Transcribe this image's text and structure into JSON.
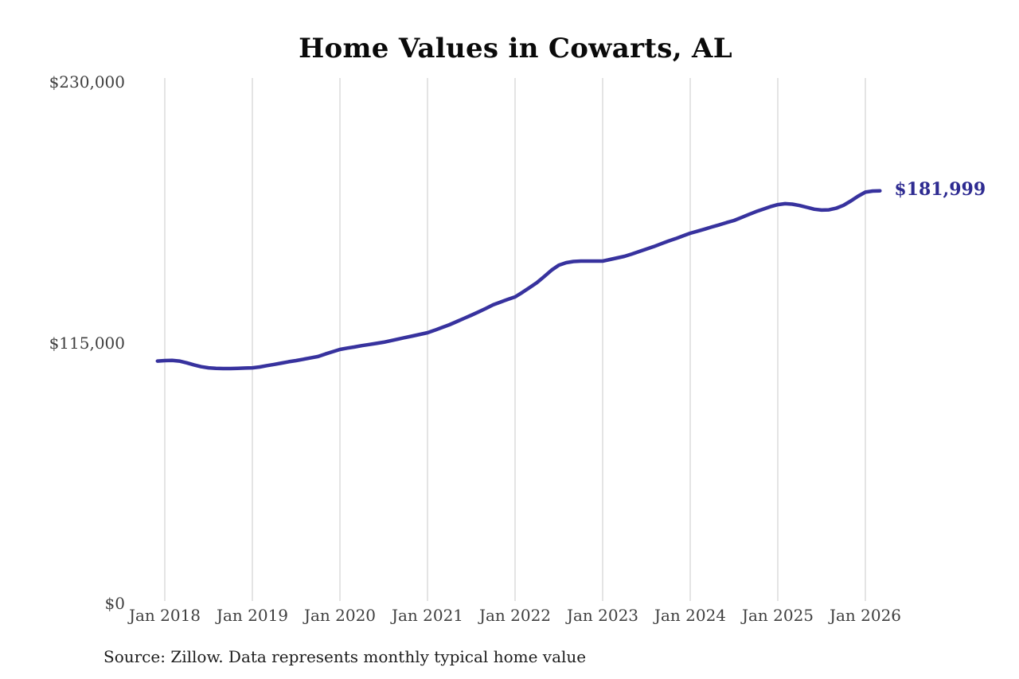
{
  "title": "Home Values in Cowarts, AL",
  "source_note": "Source: Zillow. Data represents monthly typical home value",
  "colors": {
    "background": "#ffffff",
    "line": "#37329e",
    "end_label": "#2e2b91",
    "axis_text": "#3f3f3f",
    "gridline": "#c8c8c8",
    "title": "#0a0a0a",
    "source_text": "#1d1d1d"
  },
  "chart_data": {
    "type": "line",
    "title": "Home Values in Cowarts, AL",
    "xlabel": "",
    "ylabel": "",
    "ylim": [
      0,
      230000
    ],
    "grid": "vertical-ticks-only",
    "legend_position": "none",
    "series_name": "Monthly typical home value",
    "end_annotation": "$181,999",
    "y_ticks": [
      {
        "value": 230000,
        "label": "$230,000"
      },
      {
        "value": 115000,
        "label": "$115,000"
      },
      {
        "value": 0,
        "label": "$0"
      }
    ],
    "x_tick_labels": [
      "Jan 2018",
      "Jan 2019",
      "Jan 2020",
      "Jan 2021",
      "Jan 2022",
      "Jan 2023",
      "Jan 2024",
      "Jan 2025",
      "Jan 2026"
    ],
    "x": [
      "2017-12",
      "2018-01",
      "2018-02",
      "2018-03",
      "2018-04",
      "2018-05",
      "2018-06",
      "2018-07",
      "2018-08",
      "2018-09",
      "2018-10",
      "2018-11",
      "2018-12",
      "2019-01",
      "2019-02",
      "2019-03",
      "2019-04",
      "2019-05",
      "2019-06",
      "2019-07",
      "2019-08",
      "2019-09",
      "2019-10",
      "2019-11",
      "2019-12",
      "2020-01",
      "2020-02",
      "2020-03",
      "2020-04",
      "2020-05",
      "2020-06",
      "2020-07",
      "2020-08",
      "2020-09",
      "2020-10",
      "2020-11",
      "2020-12",
      "2021-01",
      "2021-02",
      "2021-03",
      "2021-04",
      "2021-05",
      "2021-06",
      "2021-07",
      "2021-08",
      "2021-09",
      "2021-10",
      "2021-11",
      "2021-12",
      "2022-01",
      "2022-02",
      "2022-03",
      "2022-04",
      "2022-05",
      "2022-06",
      "2022-07",
      "2022-08",
      "2022-09",
      "2022-10",
      "2022-11",
      "2022-12",
      "2023-01",
      "2023-02",
      "2023-03",
      "2023-04",
      "2023-05",
      "2023-06",
      "2023-07",
      "2023-08",
      "2023-09",
      "2023-10",
      "2023-11",
      "2023-12",
      "2024-01",
      "2024-02",
      "2024-03",
      "2024-04",
      "2024-05",
      "2024-06",
      "2024-07",
      "2024-08",
      "2024-09",
      "2024-10",
      "2024-11",
      "2024-12",
      "2025-01",
      "2025-02",
      "2025-03",
      "2025-04",
      "2025-05",
      "2025-06",
      "2025-07",
      "2025-08",
      "2025-09",
      "2025-10",
      "2025-11",
      "2025-12",
      "2026-01",
      "2026-02",
      "2026-03"
    ],
    "values": [
      106900,
      107100,
      107200,
      106900,
      106100,
      105200,
      104400,
      103900,
      103700,
      103600,
      103600,
      103700,
      103800,
      103900,
      104300,
      104900,
      105400,
      106000,
      106600,
      107100,
      107700,
      108300,
      108900,
      110000,
      111000,
      112000,
      112600,
      113100,
      113700,
      114200,
      114700,
      115200,
      115900,
      116600,
      117300,
      118000,
      118700,
      119400,
      120500,
      121700,
      122900,
      124300,
      125700,
      127100,
      128600,
      130100,
      131700,
      132900,
      134100,
      135200,
      137200,
      139300,
      141500,
      144200,
      147000,
      149200,
      150300,
      150800,
      151000,
      151000,
      151000,
      151000,
      151700,
      152400,
      153100,
      154100,
      155200,
      156300,
      157400,
      158600,
      159800,
      160900,
      162100,
      163300,
      164200,
      165100,
      166100,
      167000,
      168000,
      168900,
      170200,
      171500,
      172800,
      173900,
      175000,
      175900,
      176300,
      176100,
      175500,
      174700,
      173900,
      173500,
      173600,
      174300,
      175600,
      177500,
      179600,
      181400,
      181900,
      181999
    ]
  }
}
